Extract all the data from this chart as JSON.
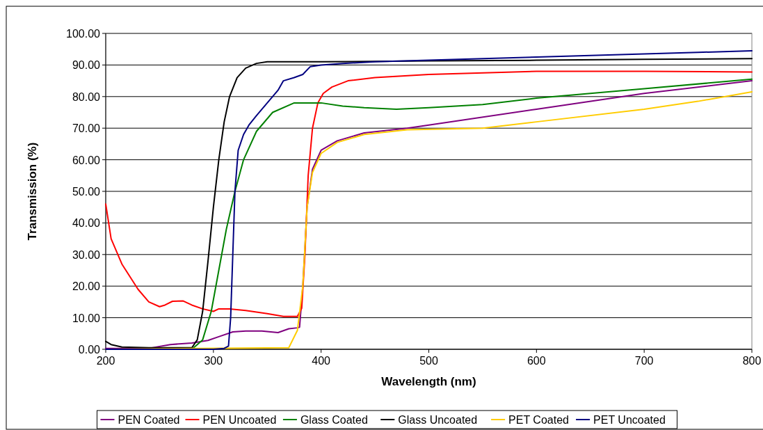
{
  "chart_data": {
    "type": "line",
    "xlabel": "Wavelength (nm)",
    "ylabel": "Transmission (%)",
    "xlim": [
      200,
      800
    ],
    "xticks": [
      200,
      300,
      400,
      500,
      600,
      700,
      800
    ],
    "ylim": [
      0,
      100
    ],
    "yticks": [
      {
        "value": 0,
        "label": "0.00"
      },
      {
        "value": 10,
        "label": "10.00"
      },
      {
        "value": 20,
        "label": "20.00"
      },
      {
        "value": 30,
        "label": "30.00"
      },
      {
        "value": 40,
        "label": "40.00"
      },
      {
        "value": 50,
        "label": "50.00"
      },
      {
        "value": 60,
        "label": "60.00"
      },
      {
        "value": 70,
        "label": "70.00"
      },
      {
        "value": 80,
        "label": "80.00"
      },
      {
        "value": 90,
        "label": "90.00"
      },
      {
        "value": 100,
        "label": "100.00"
      }
    ],
    "grid": "y",
    "legend": "bottom",
    "marker": "none",
    "line_style": "solid",
    "series": [
      {
        "name": "PEN Coated",
        "color": "#7f007f",
        "x": [
          200,
          240,
          260,
          280,
          295,
          305,
          318,
          330,
          345,
          360,
          370,
          378,
          380,
          383,
          387,
          392,
          400,
          415,
          440,
          480,
          500,
          600,
          700,
          800
        ],
        "values": [
          0.3,
          0.3,
          1.5,
          2,
          2.8,
          4,
          5.5,
          5.8,
          5.8,
          5.3,
          6.5,
          6.8,
          7,
          20,
          45,
          57,
          63,
          66,
          68.5,
          70,
          71,
          76,
          81,
          85
        ]
      },
      {
        "name": "PEN Uncoated",
        "color": "#ff0000",
        "x": [
          200,
          205,
          215,
          230,
          240,
          250,
          255,
          262,
          272,
          280,
          290,
          300,
          305,
          315,
          330,
          350,
          365,
          378,
          382,
          385,
          388,
          392,
          397,
          402,
          410,
          425,
          450,
          500,
          600,
          700,
          800
        ],
        "values": [
          46,
          35,
          27,
          19,
          15,
          13.5,
          14,
          15.2,
          15.3,
          14,
          12.8,
          12,
          12.8,
          12.8,
          12.3,
          11.3,
          10.4,
          10.4,
          13,
          30,
          55,
          70,
          78,
          81,
          83,
          85,
          86,
          87,
          88,
          88,
          87.8
        ]
      },
      {
        "name": "Glass Coated",
        "color": "#008000",
        "x": [
          200,
          280,
          290,
          298,
          305,
          312,
          320,
          328,
          340,
          355,
          375,
          400,
          420,
          440,
          470,
          500,
          550,
          600,
          700,
          800
        ],
        "values": [
          0,
          0,
          3,
          12,
          25,
          38,
          50,
          60,
          69,
          75,
          78,
          78,
          77,
          76.5,
          76,
          76.5,
          77.5,
          79.5,
          82.5,
          85.5
        ]
      },
      {
        "name": "Glass Uncoated",
        "color": "#000000",
        "x": [
          200,
          205,
          215,
          240,
          280,
          285,
          290,
          295,
          300,
          305,
          310,
          315,
          322,
          330,
          340,
          350,
          400,
          500,
          600,
          700,
          800
        ],
        "values": [
          2.5,
          1.5,
          0.7,
          0.5,
          0.5,
          3,
          12,
          28,
          45,
          60,
          72,
          80,
          86,
          89,
          90.5,
          91,
          91,
          91.3,
          91.5,
          91.8,
          92
        ]
      },
      {
        "name": "PET Coated",
        "color": "#ffcc00",
        "x": [
          200,
          370,
          378,
          383,
          387,
          392,
          400,
          415,
          440,
          480,
          550,
          600,
          700,
          750,
          800
        ],
        "values": [
          0,
          0.5,
          6,
          20,
          45,
          56,
          62,
          65.5,
          68,
          69.5,
          70,
          72,
          76,
          78.5,
          81.5
        ]
      },
      {
        "name": "PET Uncoated",
        "color": "#000080",
        "x": [
          200,
          300,
          310,
          314,
          316,
          318,
          320,
          323,
          328,
          333,
          340,
          350,
          360,
          365,
          375,
          383,
          390,
          400,
          420,
          450,
          500,
          600,
          700,
          750,
          800
        ],
        "values": [
          0,
          0,
          0.3,
          1,
          10,
          30,
          50,
          63,
          68,
          71,
          74,
          78,
          82,
          85,
          86,
          87,
          89.5,
          90,
          90.5,
          91,
          91.5,
          92.5,
          93.5,
          94,
          94.5
        ]
      }
    ]
  }
}
